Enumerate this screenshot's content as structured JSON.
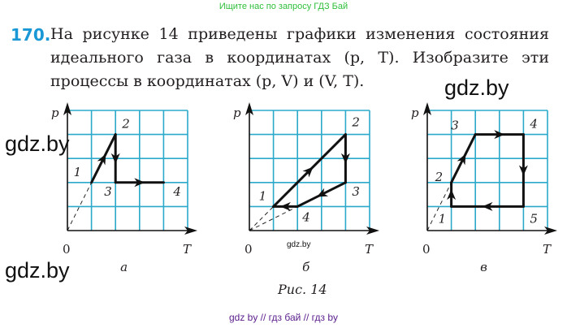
{
  "banner": "Ищите нас по запросу ГДЗ Бай",
  "problem": {
    "number": "170.",
    "lines": [
      "На рисунке 14 приведены графики изменения состояния",
      "идеального газа в координатах (p, T). Изобразите эти",
      "процессы в координатах (p, V) и (V, T)."
    ]
  },
  "watermarks": [
    "gdz.by",
    "gdz.by",
    "gdz.by",
    "gdz.by"
  ],
  "colors": {
    "grid": "#2aa9cb",
    "number": "#1a98d5",
    "banner": "#2fbf3a",
    "footer": "#5a1e8c"
  },
  "diagrams": [
    {
      "sublabel": "а",
      "y_axis": "p",
      "x_axis": "T",
      "origin": "0",
      "points": [
        {
          "label": "1",
          "T": 1,
          "p": 2
        },
        {
          "label": "2",
          "T": 2,
          "p": 4
        },
        {
          "label": "3",
          "T": 2,
          "p": 2
        },
        {
          "label": "4",
          "T": 4,
          "p": 2
        }
      ],
      "process": [
        "1",
        "2",
        "3",
        "4"
      ],
      "closed": false,
      "dashed_to_origin": [
        "1"
      ]
    },
    {
      "sublabel": "б",
      "y_axis": "p",
      "x_axis": "T",
      "origin": "0",
      "points": [
        {
          "label": "1",
          "T": 1,
          "p": 1
        },
        {
          "label": "2",
          "T": 4,
          "p": 4
        },
        {
          "label": "3",
          "T": 4,
          "p": 2
        },
        {
          "label": "4",
          "T": 2,
          "p": 1
        }
      ],
      "process": [
        "1",
        "2",
        "3",
        "4",
        "1"
      ],
      "closed": true,
      "dashed_to_origin": [
        "1",
        "4"
      ]
    },
    {
      "sublabel": "в",
      "y_axis": "p",
      "x_axis": "T",
      "origin": "0",
      "points": [
        {
          "label": "1",
          "T": 1,
          "p": 1
        },
        {
          "label": "2",
          "T": 1,
          "p": 2
        },
        {
          "label": "3",
          "T": 2,
          "p": 4
        },
        {
          "label": "4",
          "T": 4,
          "p": 4
        },
        {
          "label": "5",
          "T": 4,
          "p": 1
        }
      ],
      "process": [
        "1",
        "2",
        "3",
        "4",
        "5",
        "1"
      ],
      "closed": true,
      "dashed_to_origin": [
        "2"
      ]
    }
  ],
  "caption": "Рис. 14",
  "footer": "gdz by  //  гдз бай  //  гдз by"
}
